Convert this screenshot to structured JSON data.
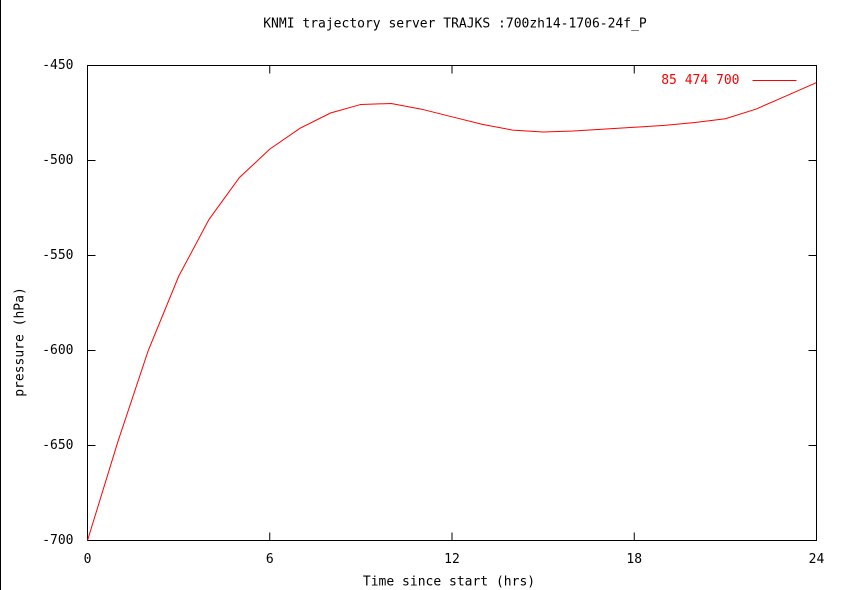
{
  "chart_data": {
    "type": "line",
    "title": "KNMI trajectory server TRAJKS :700zh14-1706-24f_P",
    "x_label": "Time since start (hrs)",
    "y_label": "pressure (hPa)",
    "x": [
      0,
      1,
      2,
      3,
      4,
      5,
      6,
      7,
      8,
      9,
      10,
      11,
      12,
      13,
      14,
      15,
      16,
      17,
      18,
      19,
      20,
      21,
      22,
      23,
      24
    ],
    "series": [
      {
        "name": "85 474 700",
        "color": "#ff0000",
        "values": [
          -700,
          -648,
          -600,
          -561,
          -531,
          -509,
          -494,
          -483,
          -475,
          -470.5,
          -470,
          -473,
          -477,
          -481,
          -484,
          -485,
          -484.5,
          -483.5,
          -482.5,
          -481.5,
          -480,
          -478,
          -473,
          -466,
          -459
        ]
      }
    ],
    "xlim": [
      0,
      24
    ],
    "xticks": [
      0,
      6,
      12,
      18,
      24
    ],
    "ylim": [
      -700,
      -450
    ],
    "yticks": [
      -450,
      -500,
      -550,
      -600,
      -650,
      -700
    ],
    "legend": "top-right"
  }
}
